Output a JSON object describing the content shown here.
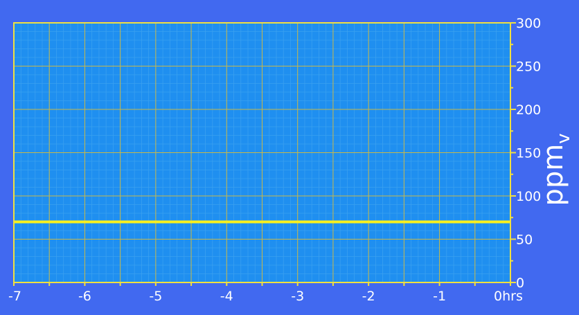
{
  "chart_data": {
    "type": "line",
    "x_ticks": [
      {
        "value": -7,
        "label": "-7"
      },
      {
        "value": -6,
        "label": "-6"
      },
      {
        "value": -5,
        "label": "-5"
      },
      {
        "value": -4,
        "label": "-4"
      },
      {
        "value": -3,
        "label": "-3"
      },
      {
        "value": -2,
        "label": "-2"
      },
      {
        "value": -1,
        "label": "-1"
      },
      {
        "value": 0,
        "label": "0hrs"
      }
    ],
    "y_ticks": [
      {
        "value": 0,
        "label": "0"
      },
      {
        "value": 50,
        "label": "50"
      },
      {
        "value": 100,
        "label": "100"
      },
      {
        "value": 150,
        "label": "150"
      },
      {
        "value": 200,
        "label": "200"
      },
      {
        "value": 250,
        "label": "250"
      },
      {
        "value": 300,
        "label": "300"
      }
    ],
    "ylabel": "ppm",
    "ylabel_subscript": "v",
    "xlim": [
      -7,
      0
    ],
    "ylim": [
      0,
      300
    ],
    "grid": true,
    "series": [
      {
        "x": [
          -7,
          0
        ],
        "values": [
          70,
          70
        ]
      }
    ],
    "colors": {
      "background": "#4169f0",
      "plot_fill": "#1f8ff0",
      "minor_grid": "#3aa0f0",
      "major_grid": "#c8b848",
      "axis": "#f0e040",
      "series_line": "#f7f01e",
      "text": "#ffffff"
    }
  }
}
